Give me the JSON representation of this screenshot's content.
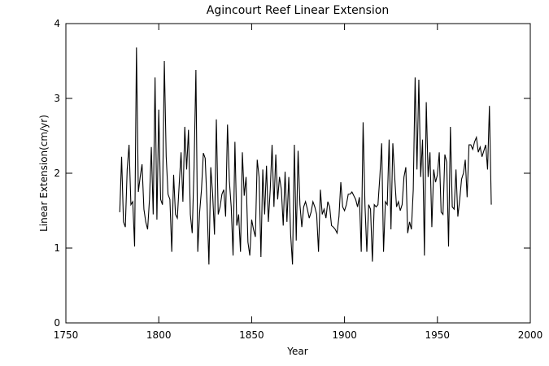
{
  "chart_data": {
    "type": "line",
    "title": "Agincourt Reef Linear Extension",
    "xlabel": "Year",
    "ylabel": "Linear Extension(cm/yr)",
    "xlim": [
      1750,
      2000
    ],
    "ylim": [
      0,
      4
    ],
    "x_ticks": [
      1750,
      1800,
      1850,
      1900,
      1950,
      2000
    ],
    "y_ticks": [
      0,
      1,
      2,
      3,
      4
    ],
    "grid": false,
    "line_color": "#000000",
    "series": [
      {
        "x_start": 1779,
        "x_step": 1,
        "values": [
          1.48,
          2.22,
          1.35,
          1.28,
          2.05,
          2.38,
          1.58,
          1.62,
          1.02,
          3.68,
          1.75,
          1.95,
          2.12,
          1.52,
          1.35,
          1.25,
          1.65,
          2.35,
          1.45,
          3.28,
          1.38,
          2.85,
          1.65,
          1.58,
          3.5,
          2.22,
          1.72,
          1.65,
          0.95,
          1.98,
          1.45,
          1.4,
          1.85,
          2.28,
          1.62,
          2.62,
          2.05,
          2.58,
          1.45,
          1.2,
          2.08,
          3.38,
          0.95,
          1.48,
          1.78,
          2.27,
          2.2,
          1.58,
          0.78,
          2.08,
          1.72,
          1.18,
          2.72,
          1.45,
          1.55,
          1.72,
          1.78,
          1.42,
          2.65,
          1.9,
          1.55,
          0.9,
          2.42,
          1.3,
          1.45,
          0.95,
          2.28,
          1.7,
          1.95,
          1.08,
          0.9,
          1.38,
          1.25,
          1.15,
          2.18,
          1.95,
          0.88,
          2.05,
          1.45,
          2.1,
          1.35,
          1.78,
          2.38,
          1.55,
          2.25,
          1.65,
          1.95,
          1.78,
          1.3,
          2.02,
          1.35,
          1.95,
          1.18,
          0.78,
          2.38,
          1.1,
          2.3,
          1.58,
          1.28,
          1.55,
          1.62,
          1.52,
          1.4,
          1.48,
          1.62,
          1.55,
          1.45,
          0.95,
          1.78,
          1.45,
          1.52,
          1.4,
          1.62,
          1.55,
          1.3,
          1.28,
          1.25,
          1.2,
          1.42,
          1.88,
          1.55,
          1.5,
          1.58,
          1.72,
          1.72,
          1.75,
          1.7,
          1.65,
          1.55,
          1.68,
          0.95,
          2.68,
          1.58,
          0.95,
          1.58,
          1.52,
          0.82,
          1.58,
          1.55,
          1.58,
          1.95,
          2.4,
          0.95,
          1.62,
          1.58,
          2.45,
          1.25,
          2.4,
          1.95,
          1.55,
          1.62,
          1.5,
          1.58,
          1.95,
          2.08,
          1.2,
          1.35,
          1.25,
          1.78,
          3.28,
          2.05,
          3.25,
          1.95,
          2.45,
          0.9,
          2.95,
          1.95,
          2.28,
          1.28,
          2.05,
          1.88,
          1.98,
          2.28,
          1.48,
          1.45,
          2.25,
          2.15,
          1.02,
          2.62,
          1.55,
          1.52,
          2.05,
          1.42,
          1.65,
          1.92,
          2.0,
          2.18,
          1.68,
          2.38,
          2.38,
          2.32,
          2.42,
          2.48,
          2.28,
          2.35,
          2.22,
          2.3,
          2.38,
          2.05,
          2.9,
          1.58
        ]
      }
    ]
  }
}
